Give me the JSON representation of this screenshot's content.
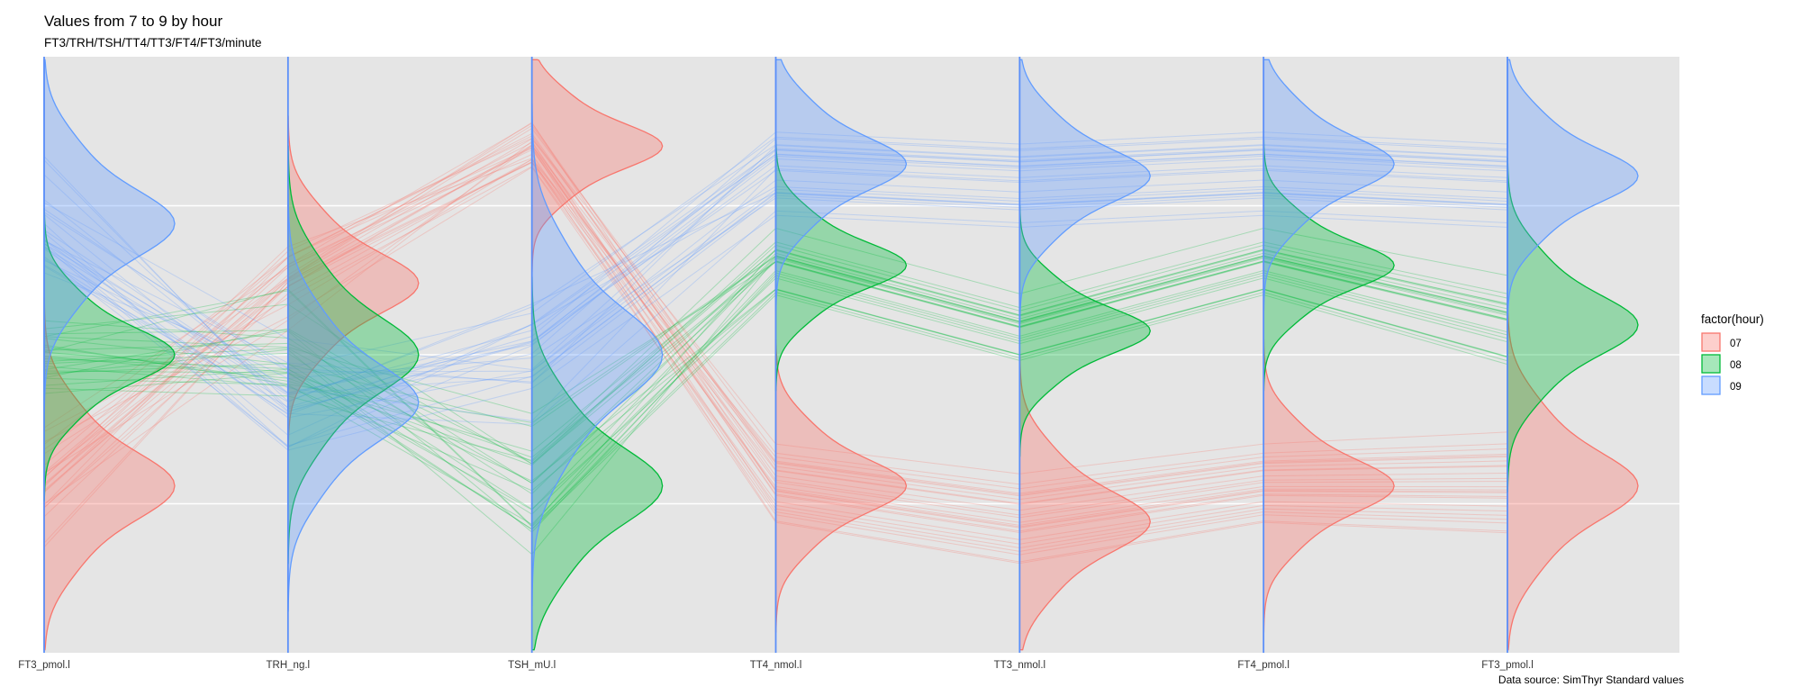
{
  "title": "Values from 7 to 9 by hour",
  "subtitle": "FT3/TRH/TSH/TT4/TT3/FT4/FT3/minute",
  "caption": "Data source: SimThyr Standard values",
  "colors": {
    "panel_bg": "#e5e5e5",
    "grid": "#ffffff",
    "axis_line": "#5b8ff9",
    "hour_07": "#f8766d",
    "hour_08": "#00ba38",
    "hour_09": "#619cff"
  },
  "chart_data": {
    "type": "parallel_coordinates",
    "axes": [
      "FT3_pmol.l",
      "TRH_ng.l",
      "TSH_mU.l",
      "TT4_nmol.l",
      "TT3_nmol.l",
      "FT4_pmol.l",
      "FT3_pmol.l"
    ],
    "legend": {
      "title": "factor(hour)",
      "position": "right",
      "entries": [
        "07",
        "08",
        "09"
      ]
    },
    "grid": true,
    "y_scale": "scaled 0-1 per axis (no tick labels shown)",
    "series": [
      {
        "name": "07",
        "positions": [
          0.28,
          0.62,
          0.85,
          0.28,
          0.22,
          0.28,
          0.28
        ],
        "spread": [
          0.09,
          0.08,
          0.06,
          0.07,
          0.08,
          0.07,
          0.09
        ],
        "lines": 25
      },
      {
        "name": "08",
        "positions": [
          0.5,
          0.5,
          0.28,
          0.65,
          0.54,
          0.65,
          0.55
        ],
        "spread": [
          0.07,
          0.1,
          0.1,
          0.06,
          0.06,
          0.06,
          0.08
        ],
        "lines": 25
      },
      {
        "name": "09",
        "positions": [
          0.72,
          0.42,
          0.5,
          0.82,
          0.8,
          0.82,
          0.8
        ],
        "spread": [
          0.09,
          0.1,
          0.12,
          0.07,
          0.07,
          0.07,
          0.07
        ],
        "lines": 25
      }
    ]
  }
}
